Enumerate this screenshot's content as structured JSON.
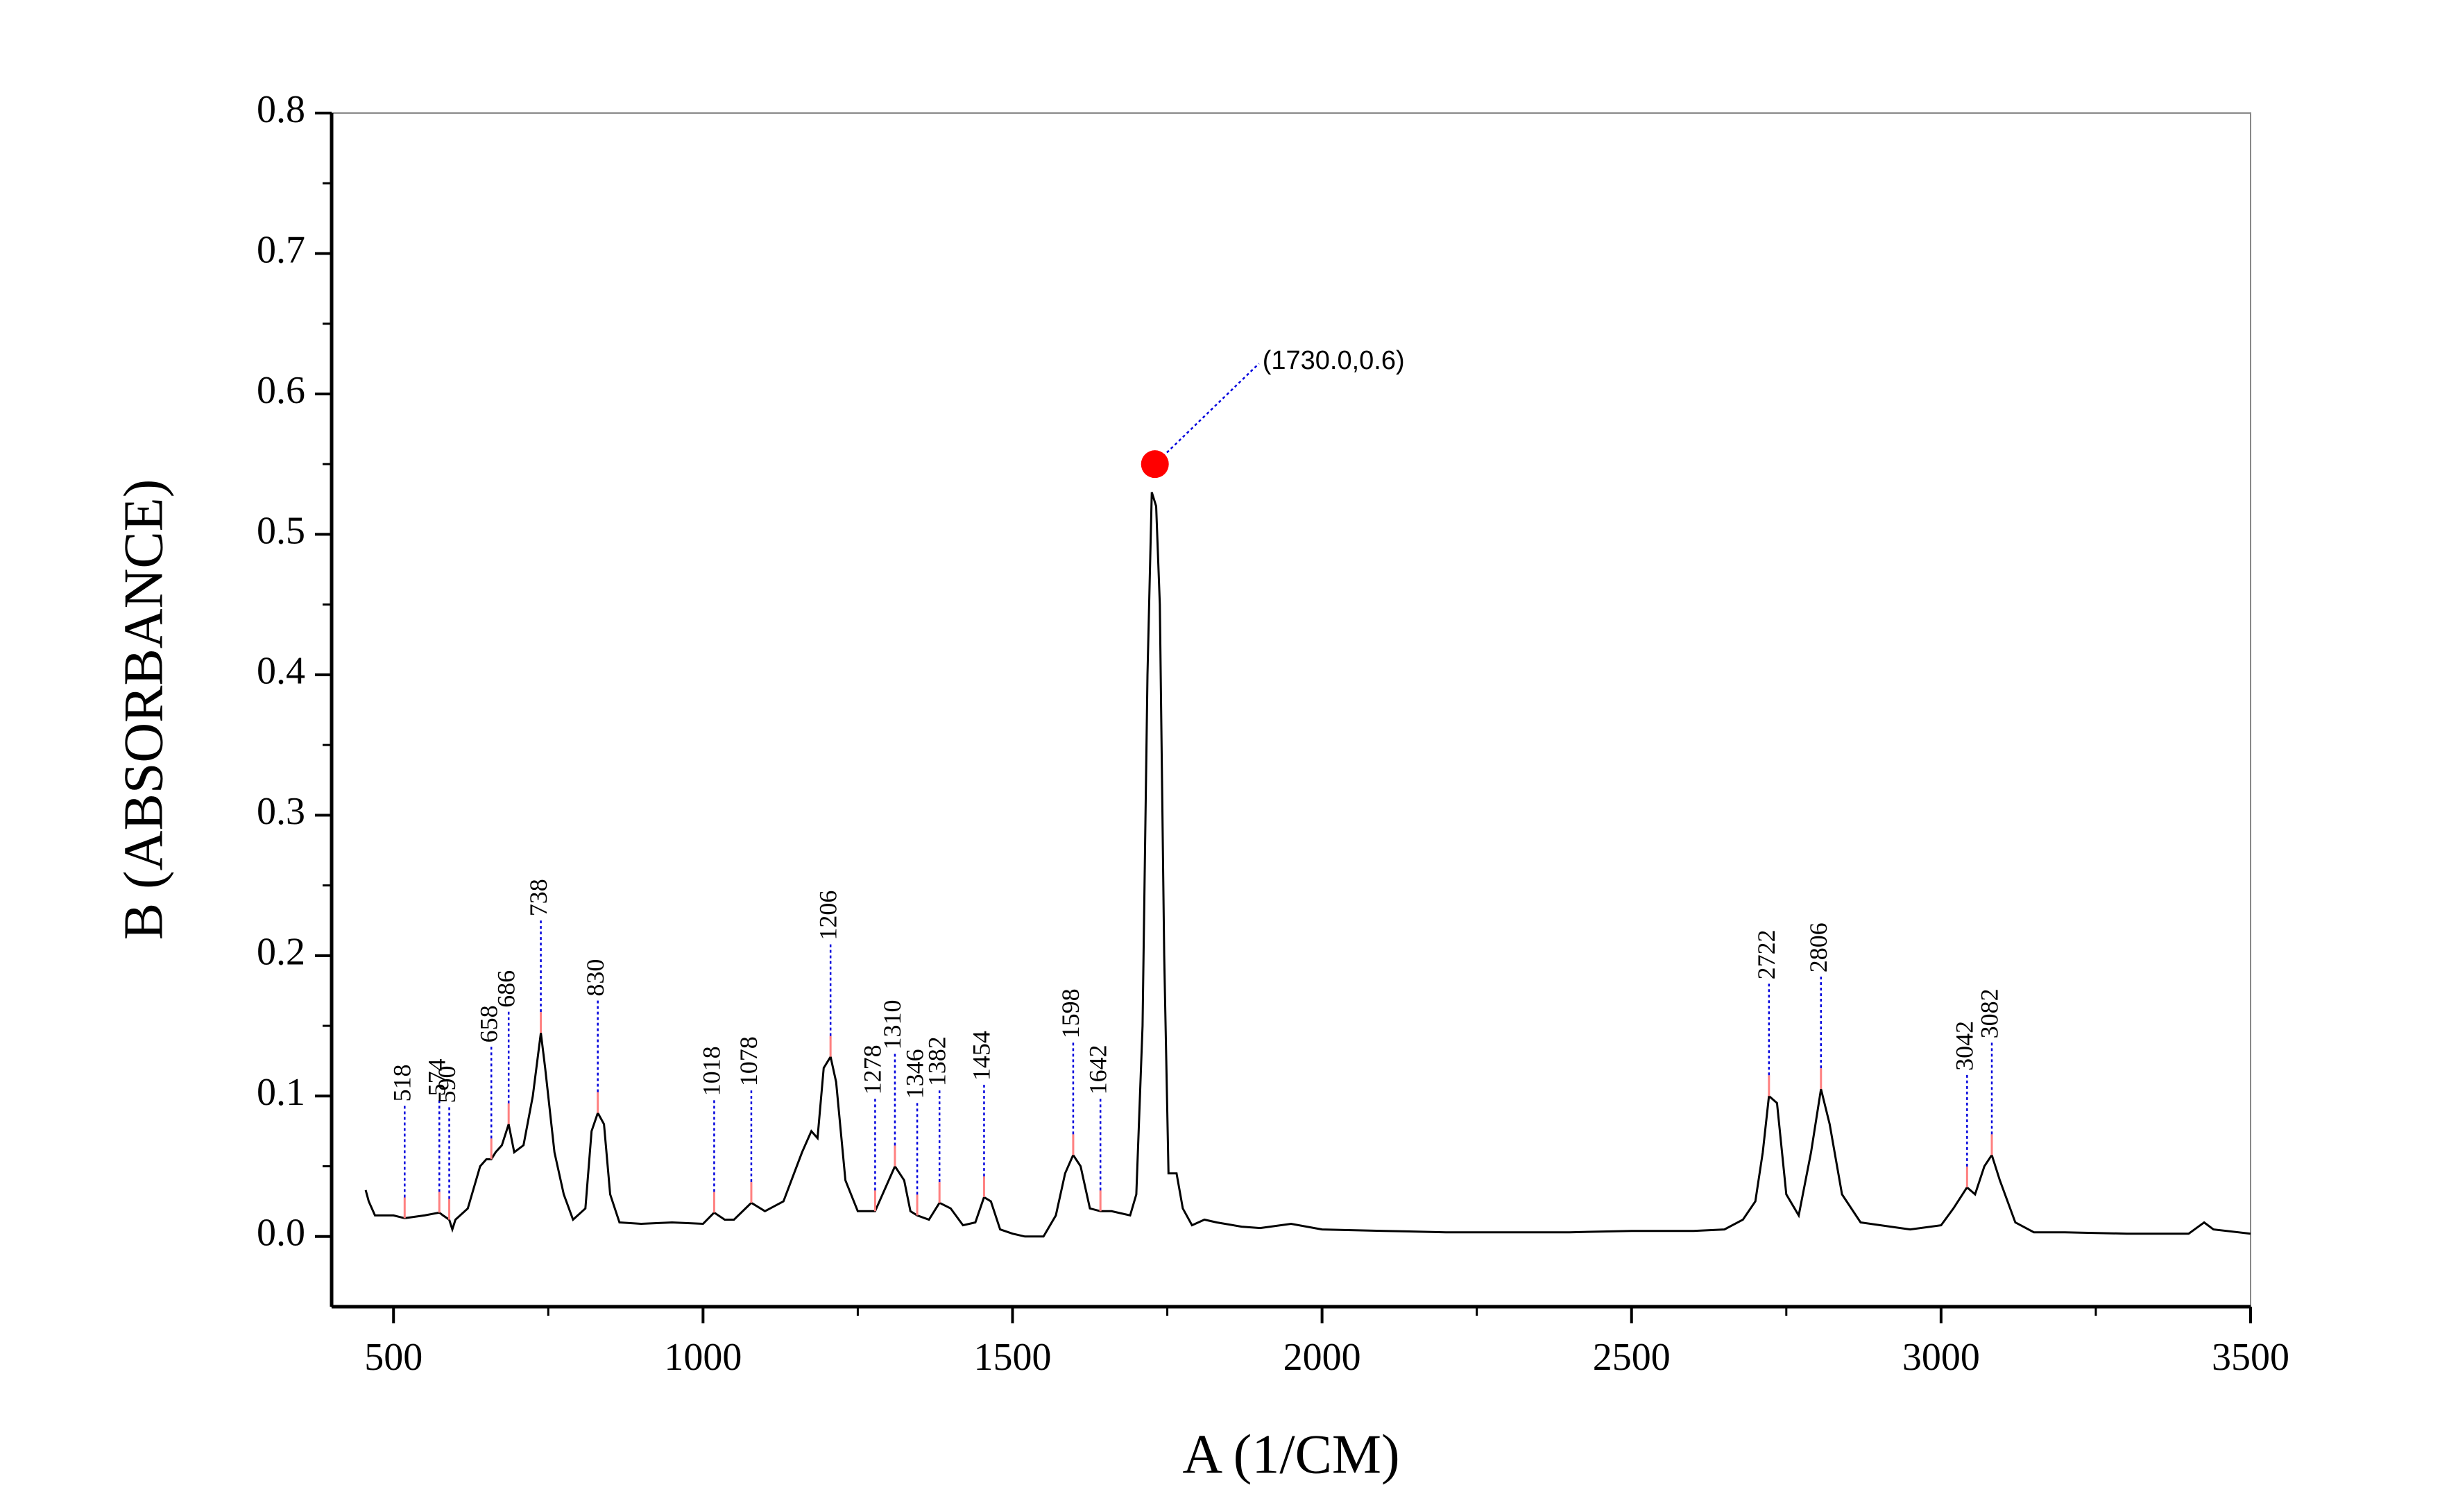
{
  "chart_data": {
    "type": "line",
    "xlabel": "A (1/CM)",
    "ylabel": "B (ABSORBANCE)",
    "xlim": [
      400,
      3500
    ],
    "ylim": [
      -0.05,
      0.8
    ],
    "xticks": [
      500,
      1000,
      1500,
      2000,
      2500,
      3000,
      3500
    ],
    "yticks": [
      {
        "value": 0,
        "label": "0.0"
      },
      0.1,
      0.2,
      0.3,
      0.4,
      0.5,
      0.6,
      0.7,
      0.8
    ],
    "color": "#000000",
    "x": [
      455,
      460,
      470,
      500,
      518,
      550,
      574,
      580,
      590,
      595,
      600,
      620,
      640,
      650,
      658,
      665,
      675,
      686,
      695,
      710,
      725,
      738,
      745,
      760,
      775,
      790,
      810,
      820,
      830,
      840,
      850,
      865,
      900,
      950,
      1000,
      1018,
      1035,
      1050,
      1078,
      1100,
      1130,
      1160,
      1175,
      1185,
      1195,
      1206,
      1215,
      1230,
      1250,
      1278,
      1295,
      1310,
      1325,
      1335,
      1346,
      1365,
      1382,
      1400,
      1420,
      1440,
      1454,
      1465,
      1480,
      1500,
      1520,
      1550,
      1570,
      1585,
      1598,
      1610,
      1625,
      1642,
      1660,
      1690,
      1700,
      1710,
      1718,
      1725,
      1732,
      1738,
      1745,
      1752,
      1765,
      1775,
      1790,
      1810,
      1830,
      1870,
      1900,
      1950,
      2000,
      2100,
      2200,
      2300,
      2400,
      2500,
      2600,
      2650,
      2680,
      2700,
      2712,
      2722,
      2735,
      2750,
      2770,
      2790,
      2806,
      2820,
      2840,
      2870,
      2950,
      3000,
      3020,
      3042,
      3055,
      3070,
      3082,
      3095,
      3120,
      3150,
      3200,
      3300,
      3400,
      3425,
      3440,
      3500
    ],
    "values": [
      0.033,
      0.025,
      0.015,
      0.015,
      0.013,
      0.015,
      0.017,
      0.015,
      0.012,
      0.005,
      0.012,
      0.02,
      0.05,
      0.055,
      0.055,
      0.06,
      0.065,
      0.08,
      0.06,
      0.065,
      0.1,
      0.145,
      0.12,
      0.06,
      0.03,
      0.012,
      0.02,
      0.075,
      0.088,
      0.08,
      0.03,
      0.01,
      0.009,
      0.01,
      0.009,
      0.017,
      0.012,
      0.012,
      0.024,
      0.018,
      0.025,
      0.06,
      0.075,
      0.07,
      0.12,
      0.128,
      0.11,
      0.04,
      0.018,
      0.018,
      0.035,
      0.05,
      0.04,
      0.018,
      0.015,
      0.012,
      0.024,
      0.02,
      0.008,
      0.01,
      0.028,
      0.025,
      0.005,
      0.002,
      0.0,
      0.0,
      0.015,
      0.045,
      0.058,
      0.05,
      0.02,
      0.018,
      0.018,
      0.015,
      0.03,
      0.15,
      0.4,
      0.53,
      0.52,
      0.45,
      0.2,
      0.045,
      0.045,
      0.02,
      0.008,
      0.012,
      0.01,
      0.007,
      0.006,
      0.009,
      0.005,
      0.004,
      0.003,
      0.003,
      0.003,
      0.004,
      0.004,
      0.005,
      0.012,
      0.025,
      0.06,
      0.1,
      0.095,
      0.03,
      0.015,
      0.06,
      0.105,
      0.08,
      0.03,
      0.01,
      0.005,
      0.008,
      0.02,
      0.035,
      0.03,
      0.05,
      0.058,
      0.04,
      0.01,
      0.003,
      0.003,
      0.002,
      0.002,
      0.01,
      0.005,
      0.002
    ],
    "peaks": [
      {
        "x": 518,
        "y": 0.013
      },
      {
        "x": 574,
        "y": 0.017
      },
      {
        "x": 590,
        "y": 0.012
      },
      {
        "x": 658,
        "y": 0.055
      },
      {
        "x": 686,
        "y": 0.08
      },
      {
        "x": 738,
        "y": 0.145
      },
      {
        "x": 830,
        "y": 0.088
      },
      {
        "x": 1018,
        "y": 0.017
      },
      {
        "x": 1078,
        "y": 0.024
      },
      {
        "x": 1206,
        "y": 0.128
      },
      {
        "x": 1278,
        "y": 0.018
      },
      {
        "x": 1310,
        "y": 0.05
      },
      {
        "x": 1346,
        "y": 0.015
      },
      {
        "x": 1382,
        "y": 0.024
      },
      {
        "x": 1454,
        "y": 0.028
      },
      {
        "x": 1598,
        "y": 0.058
      },
      {
        "x": 1642,
        "y": 0.018
      },
      {
        "x": 2722,
        "y": 0.1
      },
      {
        "x": 2806,
        "y": 0.105
      },
      {
        "x": 3042,
        "y": 0.035
      },
      {
        "x": 3082,
        "y": 0.058
      }
    ],
    "highlight": {
      "x": 1730,
      "y": 0.55,
      "label": "(1730.0,0.6)",
      "color": "#ff0000"
    }
  }
}
